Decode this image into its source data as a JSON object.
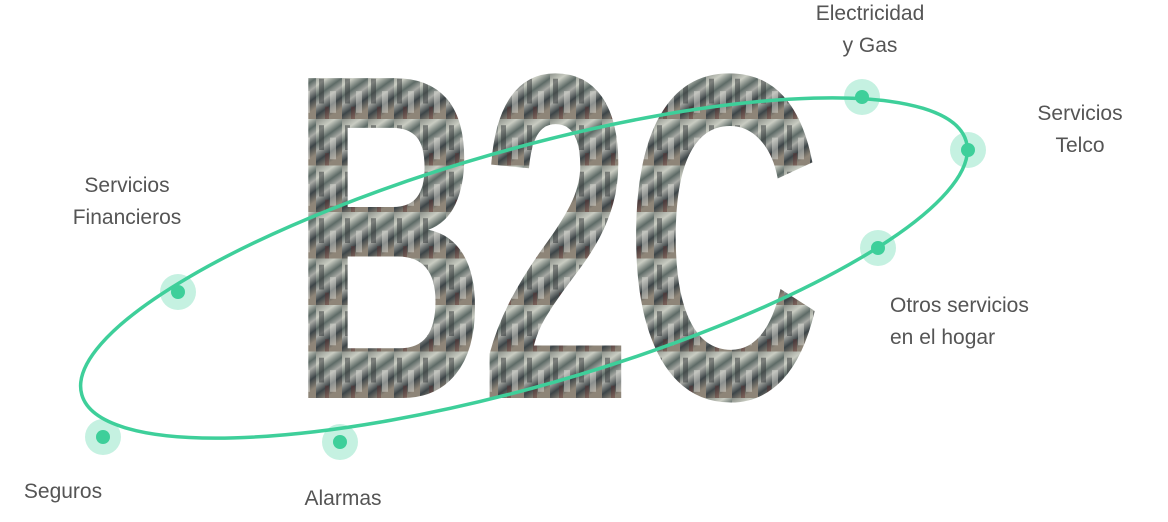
{
  "logo": {
    "text": "B2C"
  },
  "nodes": [
    {
      "lines": [
        "Electricidad",
        "y Gas"
      ]
    },
    {
      "lines": [
        "Servicios",
        "Telco"
      ]
    },
    {
      "lines": [
        "Servicios",
        "Financieros"
      ]
    },
    {
      "lines": [
        "Otros servicios",
        "en el hogar"
      ]
    },
    {
      "lines": [
        "Seguros"
      ]
    },
    {
      "lines": [
        "Alarmas"
      ]
    }
  ]
}
